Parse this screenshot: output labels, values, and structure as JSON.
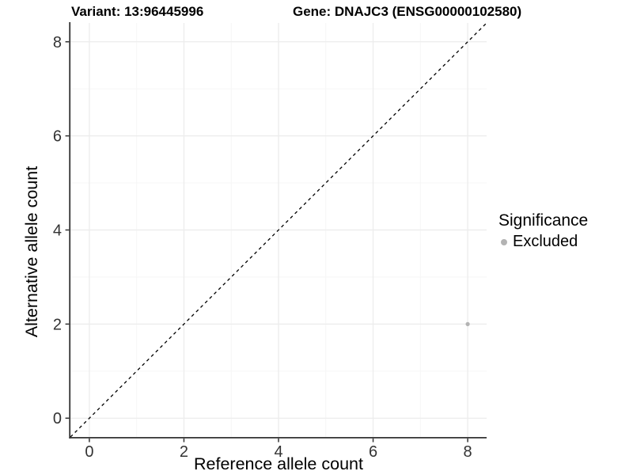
{
  "titles": {
    "left": "Variant: 13:96445996",
    "right": "Gene: DNAJC3 (ENSG00000102580)"
  },
  "chart_data": {
    "type": "scatter",
    "xlabel": "Reference allele count",
    "ylabel": "Alternative allele count",
    "xlim": [
      -0.4,
      8.4
    ],
    "ylim": [
      -0.4,
      8.4
    ],
    "xticks": [
      0,
      2,
      4,
      6,
      8
    ],
    "yticks": [
      0,
      2,
      4,
      6,
      8
    ],
    "xminor": [
      1,
      3,
      5,
      7
    ],
    "yminor": [
      1,
      3,
      5,
      7
    ],
    "grid": "on",
    "identity_line": {
      "style": "dashed",
      "color": "#000000",
      "from": [
        -0.4,
        -0.4
      ],
      "to": [
        8.4,
        8.4
      ]
    },
    "series": [
      {
        "name": "Excluded",
        "color": "#b3b3b3",
        "points": [
          [
            8,
            2
          ]
        ]
      }
    ],
    "legend": {
      "title": "Significance",
      "position": "right",
      "entries": [
        {
          "label": "Excluded",
          "color": "#b3b3b3",
          "marker": "circle"
        }
      ]
    }
  },
  "colors": {
    "grid_major": "#ececec",
    "grid_minor": "#f5f5f5",
    "axis_line": "#333333",
    "tick_mark": "#333333",
    "tick_label": "#333333",
    "text": "#000000"
  }
}
